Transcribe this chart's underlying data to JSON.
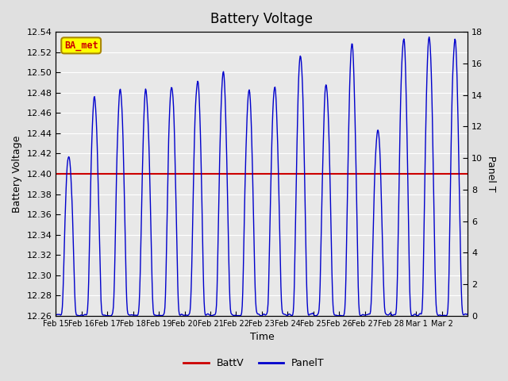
{
  "title": "Battery Voltage",
  "xlabel": "Time",
  "ylabel_left": "Battery Voltage",
  "ylabel_right": "Panel T",
  "ylim_left": [
    12.26,
    12.54
  ],
  "ylim_right": [
    0,
    18
  ],
  "yticks_left": [
    12.26,
    12.28,
    12.3,
    12.32,
    12.34,
    12.36,
    12.38,
    12.4,
    12.42,
    12.44,
    12.46,
    12.48,
    12.5,
    12.52,
    12.54
  ],
  "yticks_right": [
    0,
    2,
    4,
    6,
    8,
    10,
    12,
    14,
    16,
    18
  ],
  "battv_value": 12.4,
  "battv_color": "#cc0000",
  "panelt_color": "#0000cc",
  "bg_color": "#e0e0e0",
  "plot_bg_color": "#e8e8e8",
  "grid_color": "#ffffff",
  "annotation_text": "BA_met",
  "annotation_bg": "#ffff00",
  "annotation_border": "#aa8800",
  "annotation_text_color": "#cc0000",
  "legend_battv": "BattV",
  "legend_panelt": "PanelT",
  "x_tick_labels": [
    "Feb 15",
    "Feb 16",
    "Feb 17",
    "Feb 18",
    "Feb 19",
    "Feb 20",
    "Feb 21",
    "Feb 22",
    "Feb 23",
    "Feb 24",
    "Feb 25",
    "Feb 26",
    "Feb 27",
    "Feb 28",
    "Mar 1",
    "Mar 2"
  ],
  "n_days": 16,
  "seed": 42
}
